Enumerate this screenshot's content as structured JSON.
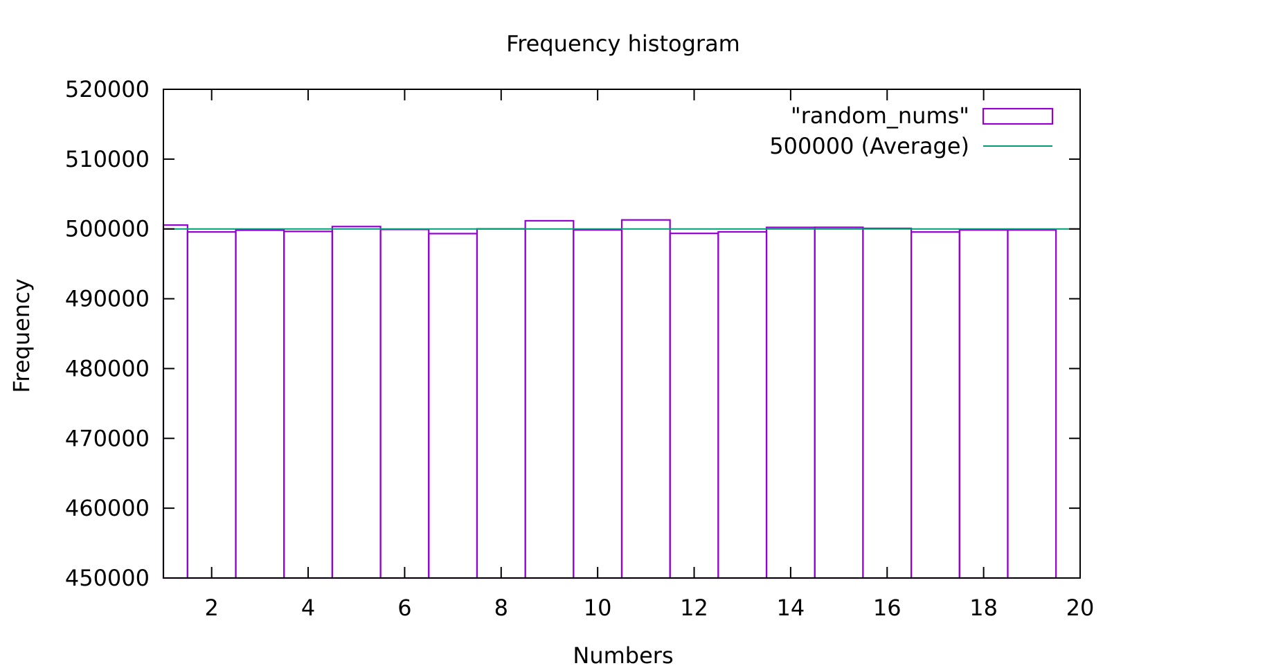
{
  "chart_data": {
    "type": "bar",
    "title": "Frequency histogram",
    "xlabel": "Numbers",
    "ylabel": "Frequency",
    "xlim": [
      1,
      20
    ],
    "ylim": [
      450000,
      520000
    ],
    "x_ticks": [
      2,
      4,
      6,
      8,
      10,
      12,
      14,
      16,
      18,
      20
    ],
    "x_tick_labels": [
      "2",
      "4",
      "6",
      "8",
      "10",
      "12",
      "14",
      "16",
      "18",
      "20"
    ],
    "y_ticks": [
      450000,
      460000,
      470000,
      480000,
      490000,
      500000,
      510000,
      520000
    ],
    "y_tick_labels": [
      "450000",
      "460000",
      "470000",
      "480000",
      "490000",
      "500000",
      "510000",
      "520000"
    ],
    "grid": false,
    "legend_position": "top-right",
    "series": [
      {
        "name": "\"random_nums\"",
        "style": "boxes",
        "color": "#9400d3",
        "x": [
          1,
          2,
          3,
          4,
          5,
          6,
          7,
          8,
          9,
          10,
          11,
          12,
          13,
          14,
          15,
          16,
          17,
          18,
          19
        ],
        "values": [
          500550,
          499570,
          499820,
          499640,
          500340,
          499930,
          499330,
          500010,
          501170,
          499860,
          501290,
          499360,
          499580,
          500220,
          500230,
          500080,
          499560,
          499850,
          499850
        ]
      },
      {
        "name": "500000 (Average)",
        "style": "line",
        "color": "#009e73",
        "constant": 500000
      }
    ]
  }
}
